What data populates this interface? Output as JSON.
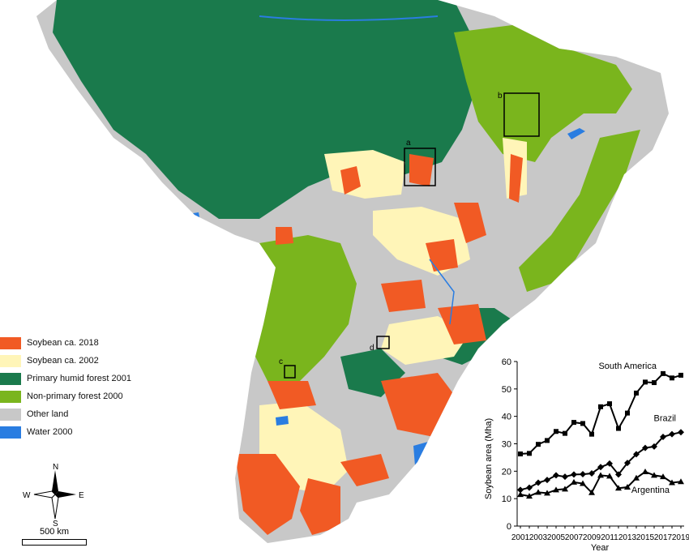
{
  "legend": [
    {
      "label": "Soybean ca. 2018",
      "color": "#f15a24"
    },
    {
      "label": "Soybean ca. 2002",
      "color": "#fff5b8"
    },
    {
      "label": "Primary humid forest 2001",
      "color": "#1a7a4c"
    },
    {
      "label": "Non-primary forest 2000",
      "color": "#7ab51d"
    },
    {
      "label": "Other land",
      "color": "#c8c8c8"
    },
    {
      "label": "Water 2000",
      "color": "#2a7de1"
    }
  ],
  "compass": {
    "n": "N",
    "s": "S",
    "e": "E",
    "w": "W"
  },
  "scale_label": "500 km",
  "boxes": [
    "a",
    "b",
    "c",
    "d"
  ],
  "chart_data": {
    "type": "line",
    "ylabel": "Soybean area (Mha)",
    "xlabel": "Year",
    "ylim": [
      0,
      60
    ],
    "yticks": [
      0,
      10,
      20,
      30,
      40,
      50,
      60
    ],
    "xticks": [
      "2001",
      "2003",
      "2005",
      "2007",
      "2009",
      "2011",
      "2013",
      "2015",
      "2017",
      "2019"
    ],
    "x": [
      2001,
      2002,
      2003,
      2004,
      2005,
      2006,
      2007,
      2008,
      2009,
      2010,
      2011,
      2012,
      2013,
      2014,
      2015,
      2016,
      2017,
      2018,
      2019
    ],
    "series": [
      {
        "name": "South America",
        "marker": "square",
        "values": [
          26.3,
          26.5,
          29.8,
          31.2,
          34.5,
          33.8,
          37.8,
          37.4,
          33.5,
          43.5,
          44.6,
          35.6,
          41.2,
          48.5,
          52.5,
          52.3,
          55.6,
          54.0,
          55.0
        ]
      },
      {
        "name": "Brazil",
        "marker": "diamond",
        "values": [
          13.2,
          14.0,
          15.8,
          16.8,
          18.5,
          18.0,
          18.8,
          18.9,
          19.2,
          21.5,
          22.8,
          18.8,
          23.0,
          26.2,
          28.5,
          29.0,
          32.5,
          33.5,
          34.2
        ]
      },
      {
        "name": "Argentina",
        "marker": "triangle",
        "values": [
          11.5,
          10.9,
          12.3,
          12.0,
          13.2,
          13.5,
          16.0,
          15.5,
          12.2,
          18.5,
          18.2,
          13.8,
          14.2,
          17.5,
          19.8,
          18.5,
          18.0,
          15.8,
          16.2
        ]
      }
    ]
  }
}
